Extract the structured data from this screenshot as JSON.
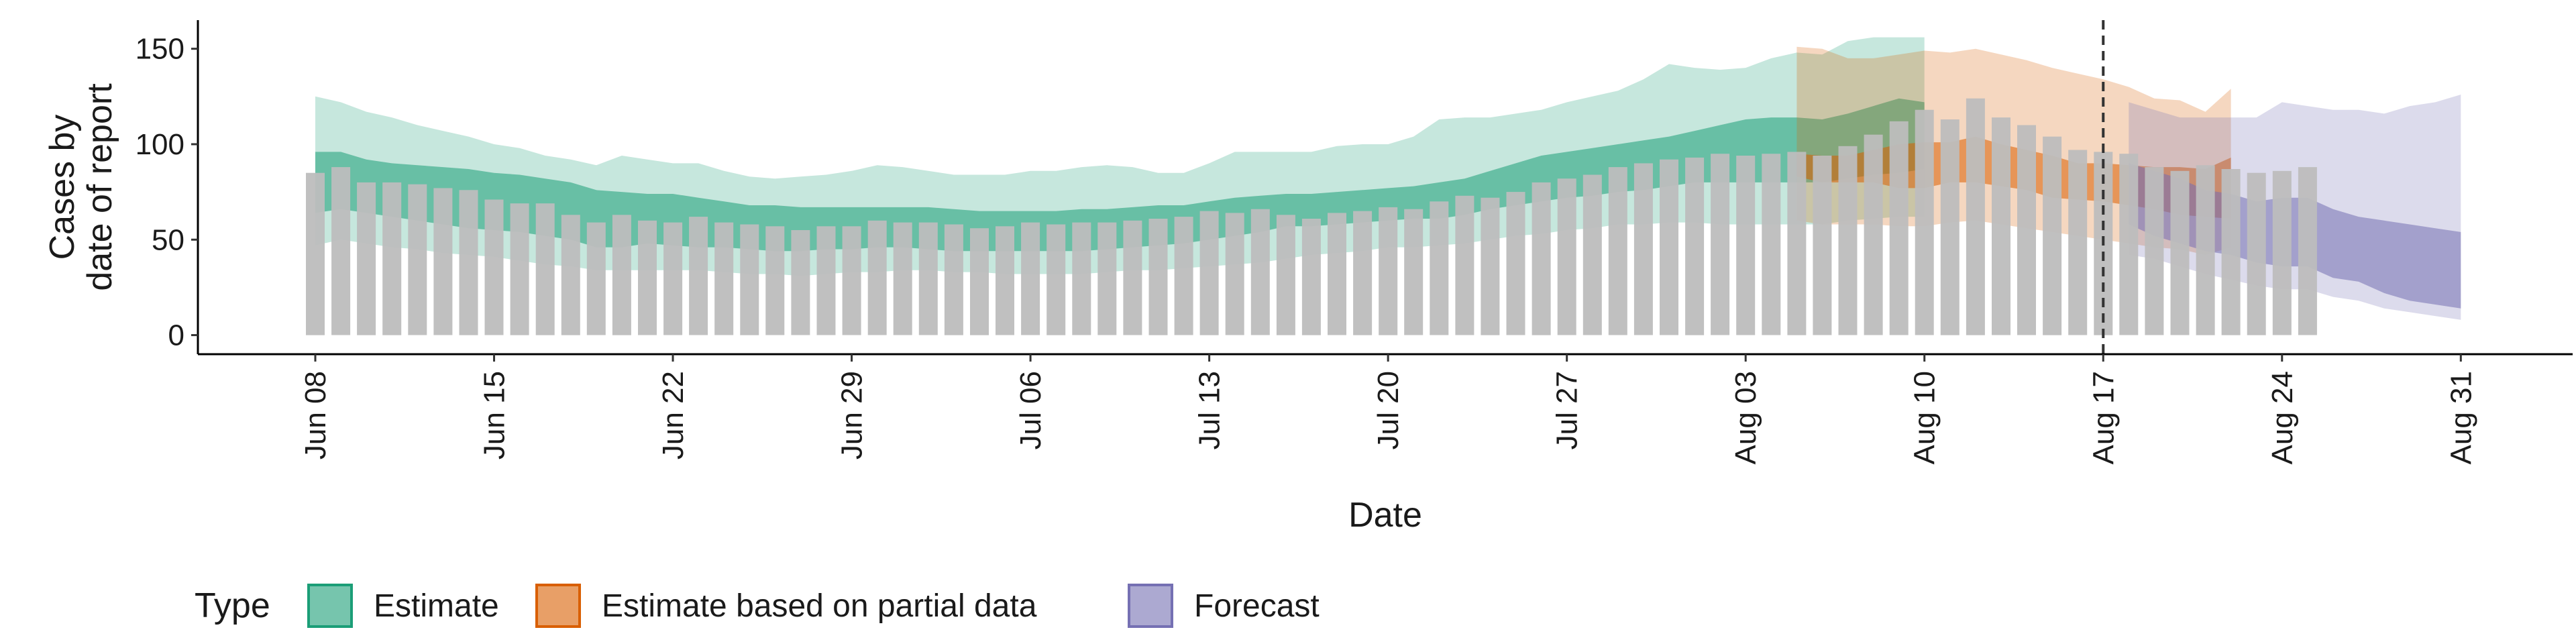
{
  "chart_data": {
    "type": "bar",
    "x_start": "2020-06-08",
    "x_end": "2020-08-31",
    "ylabel_lines": [
      "Cases by",
      "date of report"
    ],
    "xlabel": "Date",
    "ylim": [
      -10,
      165
    ],
    "yticks": [
      0,
      50,
      100,
      150
    ],
    "xtick_labels": [
      "Jun 08",
      "Jun 15",
      "Jun 22",
      "Jun 29",
      "Jul 06",
      "Jul 13",
      "Jul 20",
      "Jul 27",
      "Aug 03",
      "Aug 10",
      "Aug 17",
      "Aug 24",
      "Aug 31"
    ],
    "reference_date": "2020-08-17",
    "legend": {
      "title": "Type",
      "entries": [
        {
          "key": "estimate",
          "label": "Estimate"
        },
        {
          "key": "partial",
          "label": "Estimate based on partial data"
        },
        {
          "key": "forecast",
          "label": "Forecast"
        }
      ]
    },
    "colors": {
      "estimate": "#1b9e77",
      "partial": "#d95f02",
      "forecast": "#7570b3",
      "bars": "#bdbdbd",
      "refline": "#333333"
    },
    "observed_cases": [
      85,
      88,
      80,
      80,
      79,
      77,
      76,
      71,
      69,
      69,
      63,
      59,
      63,
      60,
      59,
      62,
      59,
      58,
      57,
      55,
      57,
      57,
      60,
      59,
      59,
      58,
      56,
      57,
      59,
      58,
      59,
      59,
      60,
      61,
      62,
      65,
      64,
      66,
      63,
      61,
      64,
      65,
      67,
      66,
      70,
      73,
      72,
      75,
      80,
      82,
      84,
      88,
      90,
      92,
      93,
      95,
      94,
      95,
      96,
      94,
      99,
      105,
      112,
      118,
      113,
      124,
      114,
      110,
      104,
      97,
      96,
      95,
      88,
      86,
      89,
      87,
      85,
      86,
      88
    ],
    "series": [
      {
        "key": "estimate",
        "start": "2020-06-08",
        "inner_low": [
          64,
          66,
          64,
          62,
          60,
          58,
          56,
          55,
          54,
          52,
          50,
          46,
          46,
          48,
          47,
          46,
          46,
          45,
          44,
          44,
          45,
          45,
          46,
          46,
          45,
          44,
          44,
          44,
          44,
          44,
          44,
          45,
          46,
          47,
          48,
          50,
          52,
          54,
          57,
          57,
          58,
          59,
          60,
          61,
          61,
          63,
          66,
          68,
          70,
          72,
          73,
          75,
          76,
          78,
          80,
          80,
          80,
          80,
          80,
          80,
          82,
          84,
          85,
          87
        ],
        "inner_high": [
          96,
          96,
          92,
          90,
          89,
          88,
          87,
          85,
          84,
          82,
          80,
          76,
          75,
          74,
          74,
          72,
          70,
          68,
          68,
          67,
          67,
          67,
          67,
          67,
          67,
          66,
          65,
          65,
          65,
          65,
          66,
          66,
          67,
          68,
          68,
          70,
          72,
          73,
          74,
          74,
          75,
          76,
          77,
          78,
          80,
          82,
          86,
          90,
          94,
          96,
          98,
          100,
          102,
          104,
          107,
          110,
          113,
          114,
          114,
          113,
          116,
          120,
          124,
          122
        ],
        "outer_low": [
          47,
          50,
          48,
          46,
          45,
          43,
          42,
          41,
          39,
          37,
          36,
          34,
          34,
          34,
          34,
          34,
          33,
          32,
          32,
          31,
          32,
          33,
          33,
          34,
          34,
          33,
          33,
          32,
          32,
          32,
          32,
          33,
          34,
          34,
          35,
          36,
          37,
          38,
          40,
          42,
          43,
          44,
          46,
          46,
          47,
          48,
          50,
          52,
          53,
          55,
          56,
          58,
          58,
          59,
          59,
          58,
          58,
          58,
          58,
          58,
          60,
          61,
          62,
          62
        ],
        "outer_high": [
          125,
          122,
          117,
          114,
          110,
          107,
          104,
          100,
          98,
          94,
          92,
          89,
          94,
          92,
          90,
          90,
          86,
          83,
          82,
          83,
          84,
          86,
          89,
          88,
          86,
          84,
          84,
          84,
          86,
          86,
          88,
          89,
          88,
          85,
          85,
          90,
          96,
          96,
          96,
          96,
          99,
          100,
          100,
          104,
          113,
          114,
          114,
          116,
          118,
          122,
          125,
          128,
          134,
          142,
          140,
          139,
          140,
          145,
          148,
          147,
          154,
          156,
          156,
          156
        ]
      },
      {
        "key": "partial",
        "start": "2020-08-05",
        "inner_low": [
          83,
          80,
          80,
          80,
          77,
          77,
          80,
          80,
          78,
          76,
          72,
          71,
          70,
          68,
          66,
          63,
          62,
          61
        ],
        "inner_high": [
          95,
          94,
          94,
          97,
          100,
          101,
          101,
          104,
          100,
          97,
          94,
          90,
          90,
          89,
          88,
          88,
          87,
          93
        ],
        "outer_low": [
          60,
          58,
          58,
          58,
          57,
          57,
          59,
          60,
          58,
          56,
          54,
          52,
          50,
          48,
          46,
          45,
          42,
          46
        ],
        "outer_high": [
          151,
          150,
          145,
          145,
          147,
          149,
          148,
          150,
          147,
          144,
          140,
          137,
          134,
          130,
          124,
          123,
          117,
          129
        ]
      },
      {
        "key": "forecast",
        "start": "2020-08-18",
        "inner_low": [
          58,
          52,
          48,
          44,
          42,
          38,
          36,
          36,
          30,
          28,
          22,
          18,
          16,
          14
        ],
        "inner_high": [
          90,
          86,
          82,
          76,
          74,
          70,
          72,
          72,
          66,
          62,
          60,
          58,
          56,
          54
        ],
        "outer_low": [
          42,
          40,
          36,
          32,
          29,
          26,
          24,
          24,
          20,
          18,
          14,
          12,
          10,
          8
        ],
        "outer_high": [
          122,
          118,
          114,
          114,
          114,
          114,
          122,
          120,
          118,
          118,
          116,
          120,
          122,
          126
        ]
      }
    ]
  }
}
